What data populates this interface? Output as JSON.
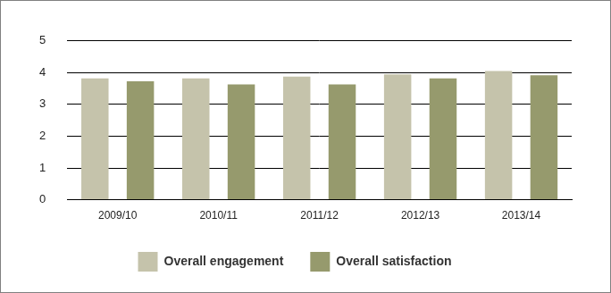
{
  "chart_data": {
    "type": "bar",
    "categories": [
      "2009/10",
      "2010/11",
      "2011/12",
      "2012/13",
      "2013/14"
    ],
    "series": [
      {
        "name": "Overall engagement",
        "color": "#c5c3ab",
        "values": [
          3.82,
          3.82,
          3.88,
          3.95,
          4.05
        ]
      },
      {
        "name": "Overall satisfaction",
        "color": "#969a6d",
        "values": [
          3.73,
          3.63,
          3.63,
          3.82,
          3.92
        ]
      }
    ],
    "ylim": [
      0,
      5
    ],
    "yticks": [
      0,
      1,
      2,
      3,
      4,
      5
    ],
    "grid": true,
    "legend": "bottom"
  }
}
